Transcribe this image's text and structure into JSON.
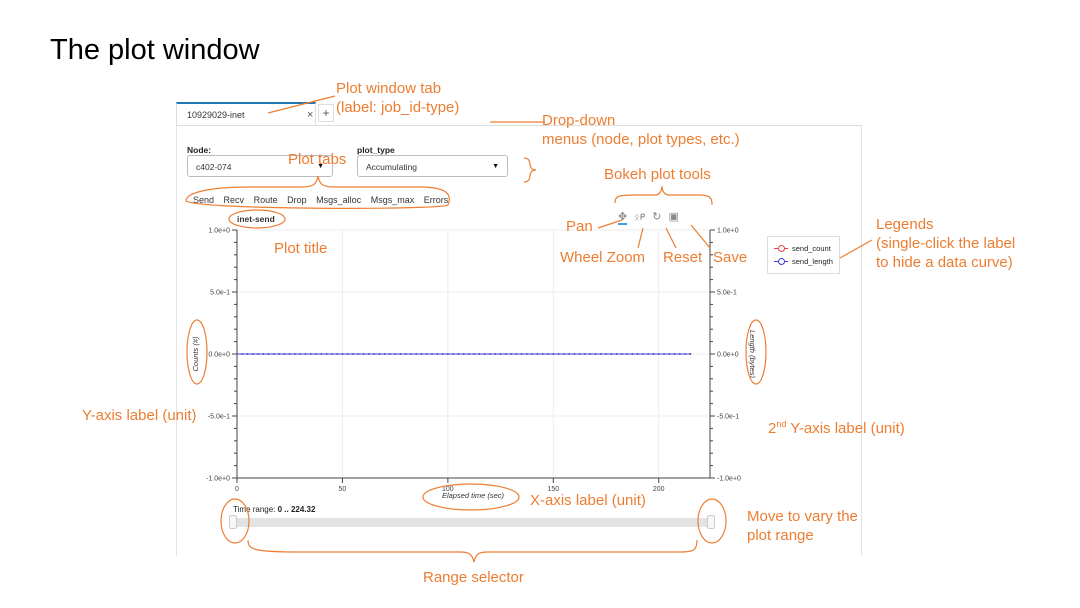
{
  "slide": {
    "title": "The plot window"
  },
  "window_tab": {
    "label": "10929029-inet",
    "close_icon": "×",
    "add_icon": "+"
  },
  "controls": {
    "node_label": "Node:",
    "node_value": "c402-074",
    "plot_type_label": "plot_type",
    "plot_type_value": "Accumulating"
  },
  "plot_tabs": [
    "Send",
    "Recv",
    "Route",
    "Drop",
    "Msgs_alloc",
    "Msgs_max",
    "Errors"
  ],
  "toolbar": {
    "tools": [
      "pan-icon",
      "wheel-zoom-icon",
      "reset-icon",
      "save-icon"
    ]
  },
  "legend": {
    "items": [
      {
        "label": "send_count",
        "color": "#e8404a"
      },
      {
        "label": "send_length",
        "color": "#3b3bd6"
      }
    ]
  },
  "range": {
    "prefix": "Time range: ",
    "value": "0 .. 224.32",
    "start": 0,
    "end": 224.32
  },
  "chart_data": {
    "type": "line",
    "title": "inet-send",
    "xlabel": "Elapsed time (sec)",
    "ylabel": "Counts (#)",
    "y2label": "Length (bytes)",
    "xlim": [
      0,
      224.32
    ],
    "ylim": [
      -1.0,
      1.0
    ],
    "y2lim": [
      -1.0,
      1.0
    ],
    "xticks": [
      0,
      50,
      100,
      150,
      200
    ],
    "yticks": [
      "1.0e+0",
      "5.0e-1",
      "0.0e+0",
      "-5.0e-1",
      "-1.0e+0"
    ],
    "y2ticks": [
      "1.0e+0",
      "5.0e-1",
      "0.0e+0",
      "-5.0e-1",
      "-1.0e+0"
    ],
    "series": [
      {
        "name": "send_count",
        "x_start": 0,
        "x_end": 215,
        "value": 0,
        "color": "#e8404a"
      },
      {
        "name": "send_length",
        "x_start": 0,
        "x_end": 215,
        "value": 0,
        "color": "#3b3bd6"
      }
    ]
  },
  "annotations": {
    "plot_window_tab": "Plot window tab\n(label: job_id-type)",
    "dropdown": "Drop-down\nmenus (node, plot types, etc.)",
    "plot_tabs": "Plot tabs",
    "bokeh_tools": "Bokeh plot tools",
    "pan": "Pan",
    "plot_title": "Plot title",
    "wheel_zoom": "Wheel Zoom",
    "reset": "Reset",
    "save": "Save",
    "legends": "Legends\n(single-click the label\nto hide a data curve)",
    "y_axis": "Y-axis label (unit)",
    "y2_prefix": "2",
    "y2_sup": "nd",
    "y2_rest": " Y-axis label (unit)",
    "x_axis": "X-axis label (unit)",
    "move": "Move to vary the\nplot range",
    "range_selector": "Range selector"
  }
}
